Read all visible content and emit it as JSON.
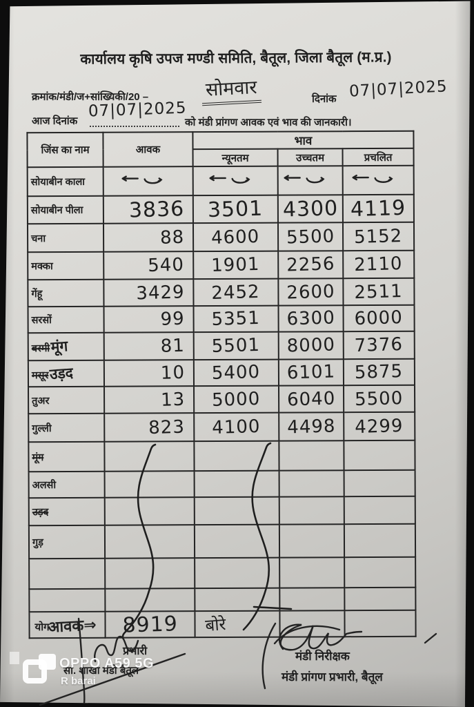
{
  "document": {
    "title": "कार्यालय कृषि उपज मण्डी समिति, बैतूल, जिला बैतूल (म.प्र.)",
    "ref_line": {
      "printed": "क्रमांक/मंडी/ज+सांख्यिकी/20  –",
      "handwritten_day": "सोमवार",
      "date_label": "दिनांक",
      "handwritten_date": "07|07|2025"
    },
    "intro_line": {
      "prefix": "आज दिनांक",
      "handwritten_date": "07|07|2025",
      "suffix": "को मंडी प्रांगण आवक एवं भाव की जानकारी।"
    },
    "table": {
      "headers": {
        "commodity": "जिंस का नाम",
        "arrival": "आवक",
        "price_group": "भाव",
        "min": "न्यूनतम",
        "max": "उच्चतम",
        "prevailing": "प्रचलित"
      },
      "rows": [
        {
          "label": "सोयाबीन काला",
          "struck": false,
          "hand_label": "",
          "nil": true,
          "arrival": "",
          "min": "",
          "max": "",
          "prev": ""
        },
        {
          "label": "सोयाबीन पीला",
          "struck": false,
          "hand_label": "",
          "nil": false,
          "arrival": "3836",
          "min": "3501",
          "max": "4300",
          "prev": "4119"
        },
        {
          "label": "चना",
          "struck": false,
          "hand_label": "",
          "nil": false,
          "arrival": "88",
          "min": "4600",
          "max": "5500",
          "prev": "5152"
        },
        {
          "label": "मक्का",
          "struck": false,
          "hand_label": "",
          "nil": false,
          "arrival": "540",
          "min": "1901",
          "max": "2256",
          "prev": "2110"
        },
        {
          "label": "गेंहू",
          "struck": false,
          "hand_label": "",
          "nil": false,
          "arrival": "3429",
          "min": "2452",
          "max": "2600",
          "prev": "2511"
        },
        {
          "label": "सरसों",
          "struck": false,
          "hand_label": "",
          "nil": false,
          "arrival": "99",
          "min": "5351",
          "max": "6300",
          "prev": "6000"
        },
        {
          "label": "बस्मी",
          "struck": true,
          "hand_label": "मूंग",
          "nil": false,
          "arrival": "81",
          "min": "5501",
          "max": "8000",
          "prev": "7376"
        },
        {
          "label": "मसूर",
          "struck": true,
          "hand_label": "उड़द",
          "nil": false,
          "arrival": "10",
          "min": "5400",
          "max": "6101",
          "prev": "5875"
        },
        {
          "label": "तुअर",
          "struck": false,
          "hand_label": "",
          "nil": false,
          "arrival": "13",
          "min": "5000",
          "max": "6040",
          "prev": "5500"
        },
        {
          "label": "गुल्ली",
          "struck": false,
          "hand_label": "",
          "nil": false,
          "arrival": "823",
          "min": "4100",
          "max": "4498",
          "prev": "4299"
        },
        {
          "label": "मूंग",
          "struck": true,
          "hand_label": "",
          "nil": false,
          "arrival": "",
          "min": "",
          "max": "",
          "prev": ""
        },
        {
          "label": "अलसी",
          "struck": false,
          "hand_label": "",
          "nil": false,
          "arrival": "",
          "min": "",
          "max": "",
          "prev": ""
        },
        {
          "label": "उड़द",
          "struck": true,
          "hand_label": "",
          "nil": false,
          "arrival": "",
          "min": "",
          "max": "",
          "prev": ""
        },
        {
          "label": "गुड़",
          "struck": false,
          "hand_label": "",
          "nil": false,
          "arrival": "",
          "min": "",
          "max": "",
          "prev": ""
        },
        {
          "label": "",
          "struck": false,
          "hand_label": "",
          "nil": false,
          "arrival": "",
          "min": "",
          "max": "",
          "prev": ""
        },
        {
          "label": "",
          "struck": false,
          "hand_label": "",
          "nil": false,
          "arrival": "",
          "min": "",
          "max": "",
          "prev": ""
        }
      ],
      "total": {
        "printed": "योग",
        "handwritten": "आवक",
        "arrow": "⇒",
        "arrival": "8919",
        "unit": "बोरे"
      }
    },
    "signatures": {
      "left": {
        "line1": "प्रभारी",
        "line2": "सां. शाखा मंडी बैतूल"
      },
      "right": {
        "line1": "मंडी निरीक्षक",
        "line2": "मंडी प्रांगण प्रभारी, बैतूल"
      }
    }
  },
  "watermark": {
    "line1": "OPPO A59 5G",
    "line2": "R barai"
  },
  "colors": {
    "paper": "#d7d6d2",
    "ink": "#242424",
    "background": "#0d0d0d",
    "watermark": "#ffffff"
  }
}
